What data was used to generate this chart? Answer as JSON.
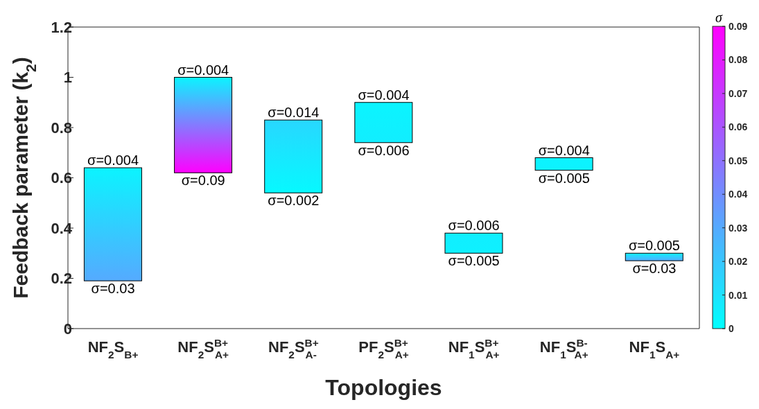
{
  "chart_data": {
    "type": "bar",
    "xlabel": "Topologies",
    "ylabel": "Feedback parameter (k$_{2}$)",
    "clabel": "σ",
    "categories": [
      "NF$_{2}$S$_{B+}$",
      "NF$_{2}$S$^{B+}$$_{A+}$",
      "NF$_{2}$S$^{B+}$$_{A-}$",
      "PF$_{2}$S$^{B+}$$_{A+}$",
      "NF$_{1}$S$^{B+}$$_{A+}$",
      "NF$_{1}$S$^{B-}$$_{A+}$",
      "NF$_{1}$S$_{A+}$"
    ],
    "base": [
      0.19,
      0.62,
      0.54,
      0.74,
      0.3,
      0.63,
      0.27
    ],
    "values": [
      0.45,
      0.38,
      0.29,
      0.16,
      0.08,
      0.05,
      0.03
    ],
    "colors": [
      [
        "#55aaff",
        "#0bf4ff"
      ],
      [
        "#ff00ff",
        "#0bf4ff"
      ],
      [
        "#06f9ff",
        "#28d7ff"
      ],
      [
        "#11eeff",
        "#0bf4ff"
      ],
      [
        "#0ef1ff",
        "#11eeff"
      ],
      [
        "#0ef1ff",
        "#0bf4ff"
      ],
      [
        "#55aaff",
        "#0ef1ff"
      ]
    ],
    "clim": [
      0,
      0.09
    ],
    "cticks": [
      0,
      0.01,
      0.02,
      0.03,
      0.04,
      0.05,
      0.06,
      0.07,
      0.08,
      0.09
    ],
    "ylim": [
      0,
      1.2
    ],
    "yticks": [
      0,
      0.2,
      0.4,
      0.6,
      0.8,
      1,
      1.2
    ],
    "annotations": [
      {
        "text": "σ=0.004",
        "x": "NF$_{2}$S$_{B+}$",
        "y": 0.64
      },
      {
        "text": "σ=0.03",
        "x": "NF$_{2}$S$_{B+}$",
        "y": 0.19
      },
      {
        "text": "σ=0.004",
        "x": "NF$_{2}$S$^{B+}$$_{A+}$",
        "y": 1
      },
      {
        "text": "σ=0.09",
        "x": "NF$_{2}$S$^{B+}$$_{A+}$",
        "y": 0.62
      },
      {
        "text": "σ=0.014",
        "x": "NF$_{2}$S$^{B+}$$_{A-}$",
        "y": 0.83
      },
      {
        "text": "σ=0.002",
        "x": "NF$_{2}$S$^{B+}$$_{A-}$",
        "y": 0.54
      },
      {
        "text": "σ=0.004",
        "x": "PF$_{2}$S$^{B+}$$_{A+}$",
        "y": 0.9
      },
      {
        "text": "σ=0.006",
        "x": "PF$_{2}$S$^{B+}$$_{A+}$",
        "y": 0.74
      },
      {
        "text": "σ=0.006",
        "x": "NF$_{1}$S$^{B+}$$_{A+}$",
        "y": 0.38
      },
      {
        "text": "σ=0.005",
        "x": "NF$_{1}$S$^{B+}$$_{A+}$",
        "y": 0.3
      },
      {
        "text": "σ=0.004",
        "x": "NF$_{1}$S$^{B-}$$_{A+}$",
        "y": 0.68
      },
      {
        "text": "σ=0.005",
        "x": "NF$_{1}$S$^{B-}$$_{A+}$",
        "y": 0.63
      },
      {
        "text": "σ=0.005",
        "x": "NF$_{1}$S$_{A+}$",
        "y": 0.3
      },
      {
        "text": "σ=0.03",
        "x": "NF$_{1}$S$_{A+}$",
        "y": 0.27
      }
    ]
  }
}
